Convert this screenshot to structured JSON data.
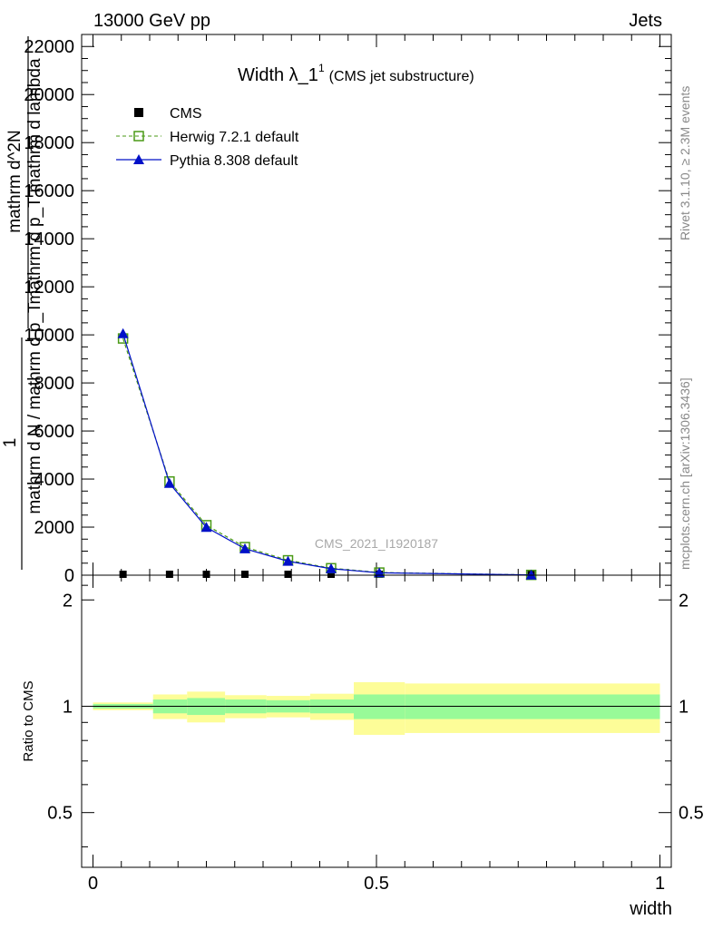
{
  "header": {
    "left": "13000 GeV pp",
    "right": "Jets"
  },
  "side_labels": {
    "rivet": "Rivet 3.1.10, ≥ 2.3M events",
    "mcplots": "mcplots.cern.ch [arXiv:1306.3436]"
  },
  "watermark": "CMS_2021_I1920187",
  "main_ylabel": {
    "numerator": "mathrm d^2N",
    "one": "1",
    "denominator_top": "mathrm d p_T mathrm d lambda",
    "denominator_bottom": "mathrm d N / mathrm d p_T"
  },
  "ratio_ylabel": "Ratio to CMS",
  "xlabel": "width",
  "chart_data": [
    {
      "type": "line",
      "title_main": "Width λ_1",
      "title_sup": "1",
      "title_sub": "(CMS jet substructure)",
      "xlim": [
        -0.02,
        1.02
      ],
      "ylim": [
        0,
        22500
      ],
      "yticks": [
        {
          "v": 0,
          "label": "0"
        },
        {
          "v": 2000,
          "label": "2000"
        },
        {
          "v": 4000,
          "label": "4000"
        },
        {
          "v": 6000,
          "label": "6000"
        },
        {
          "v": 8000,
          "label": "8000"
        },
        {
          "v": 10000,
          "label": "10000"
        },
        {
          "v": 12000,
          "label": "12000"
        },
        {
          "v": 14000,
          "label": "14000"
        },
        {
          "v": 16000,
          "label": "16000"
        },
        {
          "v": 18000,
          "label": "18000"
        },
        {
          "v": 20000,
          "label": "20000"
        },
        {
          "v": 22000,
          "label": "22000"
        }
      ],
      "legend_placement": "top-left",
      "series": [
        {
          "name": "CMS",
          "color": "#000000",
          "marker": "square-filled",
          "x": [
            0.053,
            0.135,
            0.2,
            0.268,
            0.344,
            0.42,
            0.505,
            0.773
          ],
          "y": [
            10,
            10,
            10,
            10,
            10,
            10,
            5,
            2
          ]
        },
        {
          "name": "Herwig 7.2.1 default",
          "color": "#4a9a16",
          "marker": "square-open",
          "dashed": true,
          "x": [
            0.053,
            0.135,
            0.2,
            0.268,
            0.344,
            0.42,
            0.505,
            0.773
          ],
          "y": [
            9850,
            3900,
            2080,
            1170,
            620,
            290,
            110,
            12
          ]
        },
        {
          "name": "Pythia 8.308 default",
          "color": "#0010c8",
          "marker": "triangle-filled",
          "dashed": false,
          "x": [
            0.053,
            0.135,
            0.2,
            0.268,
            0.344,
            0.42,
            0.505,
            0.773
          ],
          "y": [
            10050,
            3820,
            1990,
            1100,
            580,
            270,
            100,
            10
          ]
        }
      ]
    },
    {
      "type": "area",
      "ylabel": "Ratio to CMS",
      "xlabel": "width",
      "xlim": [
        -0.02,
        1.02
      ],
      "ylim": [
        0.35,
        2.35
      ],
      "yticks": [
        {
          "v": 0.5,
          "label": "0.5"
        },
        {
          "v": 1,
          "label": "1"
        },
        {
          "v": 2,
          "label": "2"
        }
      ],
      "xticks": [
        {
          "v": 0,
          "label": "0"
        },
        {
          "v": 0.5,
          "label": "0.5"
        },
        {
          "v": 1,
          "label": "1"
        }
      ],
      "reference_line": 1,
      "bands": [
        {
          "x0": 0.0,
          "x1": 0.106,
          "inner": [
            0.985,
            1.015
          ],
          "outer": [
            0.975,
            1.025
          ]
        },
        {
          "x0": 0.106,
          "x1": 0.166,
          "inner": [
            0.955,
            1.045
          ],
          "outer": [
            0.92,
            1.08
          ]
        },
        {
          "x0": 0.166,
          "x1": 0.233,
          "inner": [
            0.945,
            1.055
          ],
          "outer": [
            0.9,
            1.1
          ]
        },
        {
          "x0": 0.233,
          "x1": 0.306,
          "inner": [
            0.955,
            1.045
          ],
          "outer": [
            0.925,
            1.075
          ]
        },
        {
          "x0": 0.306,
          "x1": 0.383,
          "inner": [
            0.96,
            1.04
          ],
          "outer": [
            0.93,
            1.07
          ]
        },
        {
          "x0": 0.383,
          "x1": 0.46,
          "inner": [
            0.955,
            1.045
          ],
          "outer": [
            0.915,
            1.085
          ]
        },
        {
          "x0": 0.46,
          "x1": 0.55,
          "inner": [
            0.92,
            1.08
          ],
          "outer": [
            0.83,
            1.17
          ]
        },
        {
          "x0": 0.55,
          "x1": 1.0,
          "inner": [
            0.92,
            1.08
          ],
          "outer": [
            0.84,
            1.16
          ]
        }
      ],
      "band_colors": {
        "inner": "#98fa98",
        "outer": "#fdfd98"
      }
    }
  ]
}
